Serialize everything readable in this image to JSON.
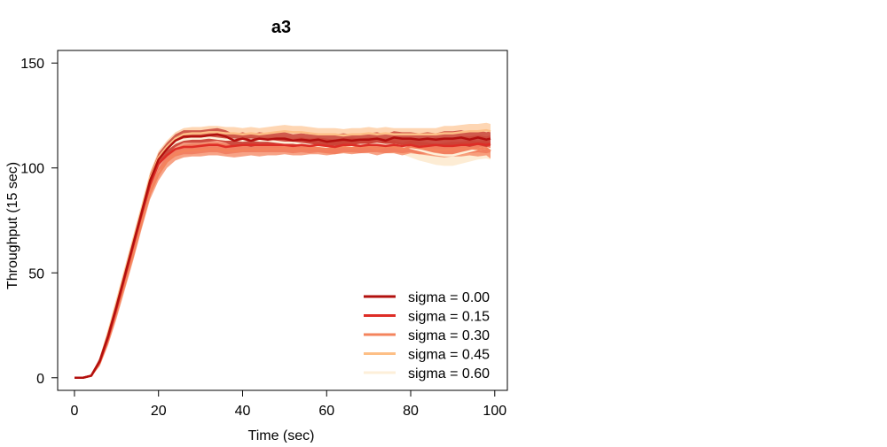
{
  "chart_data": {
    "type": "line",
    "title": "a3",
    "xlabel": "Time (sec)",
    "ylabel": "Throughput (15 sec)",
    "xlim": [
      -4,
      103
    ],
    "ylim": [
      -6,
      156
    ],
    "xticks": [
      0,
      20,
      40,
      60,
      80,
      100
    ],
    "yticks": [
      0,
      50,
      100,
      150
    ],
    "x_tick_labels": [
      "0",
      "20",
      "40",
      "60",
      "80",
      "100"
    ],
    "y_tick_labels": [
      "0",
      "50",
      "100",
      "150"
    ],
    "grid": false,
    "legend_position": "bottom-right",
    "x": [
      0,
      2,
      4,
      6,
      8,
      10,
      12,
      14,
      16,
      18,
      20,
      22,
      24,
      26,
      28,
      30,
      32,
      34,
      36,
      38,
      40,
      42,
      44,
      46,
      48,
      50,
      52,
      54,
      56,
      58,
      60,
      62,
      64,
      66,
      68,
      70,
      72,
      74,
      76,
      78,
      80,
      82,
      84,
      86,
      88,
      90,
      92,
      94,
      96,
      98,
      99
    ],
    "series": [
      {
        "name": "sigma = 0.00",
        "color": "#b2100e",
        "band_color": "#c0302a",
        "band_opacity": 0.75,
        "values": [
          0,
          0,
          1,
          8,
          20,
          34,
          49,
          64,
          79,
          94,
          104,
          109,
          113,
          115,
          115,
          115,
          115.5,
          116,
          115,
          113,
          114,
          113,
          114,
          113.5,
          114,
          114,
          113,
          113.5,
          113,
          113.5,
          112.5,
          113,
          113.5,
          113,
          113.5,
          113.5,
          114,
          113,
          114.5,
          114,
          114,
          113.5,
          114,
          113.5,
          114,
          114,
          114.5,
          113.5,
          114.5,
          113.5,
          114
        ],
        "band": [
          0,
          0,
          0.5,
          1.5,
          2.5,
          3,
          3,
          3,
          3,
          3,
          3,
          3,
          3,
          3,
          3,
          3,
          3,
          3,
          3,
          3,
          3,
          3,
          3,
          3,
          3,
          3,
          3,
          3,
          3,
          3,
          3,
          3,
          3,
          3,
          3,
          3,
          3,
          3,
          3,
          3,
          3,
          3,
          3,
          3,
          3.5,
          3.5,
          3.5,
          3.5,
          3.5,
          3.5,
          3.5
        ]
      },
      {
        "name": "sigma = 0.15",
        "color": "#de2d26",
        "band_color": "#ef6a4d",
        "band_opacity": 0.6,
        "values": [
          0,
          0,
          1,
          7.5,
          19,
          33,
          48,
          63,
          78,
          92,
          102,
          106,
          109,
          110,
          110,
          110.5,
          111,
          111,
          110,
          110.5,
          111,
          111,
          111,
          111,
          111,
          111,
          110.5,
          111,
          110.5,
          111,
          110.5,
          110,
          111,
          111,
          110.5,
          111,
          111,
          110.5,
          111,
          110.5,
          111,
          110,
          110.5,
          111,
          110.5,
          110.5,
          111,
          111,
          111.5,
          111,
          111.5
        ],
        "band": [
          0,
          0,
          0.5,
          1.5,
          2.5,
          3,
          3,
          3,
          3,
          3,
          3.5,
          3.5,
          3.5,
          3.5,
          3.5,
          3.5,
          3.5,
          3.5,
          3.5,
          3.5,
          3.5,
          3.5,
          3.5,
          3.5,
          3.5,
          3.5,
          3.5,
          3.5,
          3.5,
          3.5,
          3.5,
          3.5,
          3.5,
          3.5,
          3.5,
          3.5,
          3.5,
          3.5,
          3.5,
          3.5,
          3.5,
          3.5,
          3.5,
          3.5,
          4,
          4,
          4,
          4,
          4,
          4,
          4
        ]
      },
      {
        "name": "sigma = 0.30",
        "color": "#f4845d",
        "band_color": "#f4845d",
        "band_opacity": 0.75,
        "values": [
          0,
          0,
          1,
          7,
          18,
          31,
          45,
          59,
          74,
          88,
          97,
          103,
          106.5,
          108,
          108.5,
          108.5,
          109,
          109,
          108.5,
          108,
          108.5,
          109,
          108.5,
          109,
          109,
          109.5,
          109,
          109,
          109.5,
          109.5,
          109,
          109.5,
          110,
          109.5,
          110,
          110,
          109,
          110,
          110,
          109,
          110,
          109.5,
          109,
          108.5,
          108.5,
          109,
          109,
          109.5,
          109,
          109.5,
          108
        ],
        "band": [
          0,
          0,
          0.5,
          1.5,
          2.5,
          3,
          3,
          3,
          3,
          3,
          3,
          3,
          3,
          3,
          3,
          3,
          3,
          3,
          3,
          3,
          3,
          3,
          3,
          3,
          3,
          3,
          3,
          3,
          3,
          3,
          3,
          3,
          3,
          3,
          3,
          3,
          3,
          3,
          3,
          3,
          3,
          3,
          3,
          3,
          3.5,
          3.5,
          3.5,
          3.5,
          3.5,
          3.5,
          3.5
        ]
      },
      {
        "name": "sigma = 0.45",
        "color": "#fdbf86",
        "band_color": "#fdc89a",
        "band_opacity": 0.75,
        "values": [
          0,
          0,
          1,
          8,
          21,
          35,
          50,
          65,
          80,
          95,
          105,
          110,
          114,
          116,
          116.5,
          116.5,
          117,
          117,
          116.5,
          116.5,
          116,
          116.5,
          116,
          116.5,
          117,
          117.5,
          117,
          117,
          116.5,
          116,
          116,
          116,
          115.5,
          116,
          116,
          116.5,
          116,
          116.5,
          116,
          116,
          116,
          116,
          116,
          116,
          116.5,
          116.5,
          117,
          117.5,
          117.5,
          118,
          117.5
        ],
        "band": [
          0,
          0,
          0.5,
          1.5,
          2.5,
          3,
          3,
          3,
          3,
          3,
          3,
          3,
          3,
          3,
          3,
          3,
          3,
          3,
          3,
          3,
          3,
          3,
          3,
          3,
          3,
          3,
          3,
          3,
          3,
          3,
          3,
          3,
          3,
          3,
          3,
          3,
          3,
          3,
          3,
          3,
          3,
          3,
          3,
          3,
          3.5,
          3.5,
          3.5,
          3.5,
          3.5,
          3.5,
          3.5
        ]
      },
      {
        "name": "sigma = 0.60",
        "color": "#fdefd9",
        "band_color": "#fde9cc",
        "band_opacity": 0.85,
        "values": [
          0,
          0,
          1,
          8,
          21,
          35,
          50,
          65,
          80,
          95,
          104,
          109,
          112,
          113.5,
          114,
          114,
          114.5,
          114,
          113.5,
          113.5,
          113,
          113.5,
          113,
          113,
          112.5,
          112,
          112,
          111.5,
          111,
          110.5,
          110,
          110,
          110.5,
          110.5,
          111,
          111,
          111.5,
          111,
          111,
          110.5,
          109.5,
          108.5,
          107.5,
          106.5,
          106,
          106,
          107,
          108,
          109,
          109.5,
          109
        ],
        "band": [
          0,
          0,
          0.5,
          1.5,
          2.5,
          3,
          3,
          3,
          3,
          3,
          3,
          3,
          3,
          3,
          3,
          3,
          3,
          3,
          3,
          3,
          3,
          3,
          3,
          3,
          3,
          3,
          3,
          3,
          3,
          3,
          3.5,
          3.5,
          3.5,
          3.5,
          3.5,
          3.5,
          3.5,
          4,
          4,
          4,
          4.5,
          5,
          5,
          5,
          5,
          5,
          5,
          5,
          5,
          5,
          5
        ]
      }
    ]
  }
}
